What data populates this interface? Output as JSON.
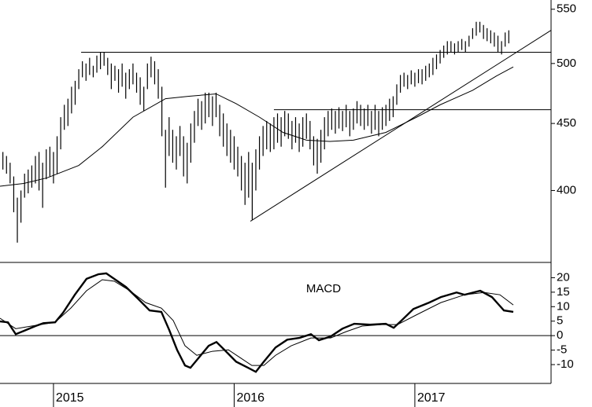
{
  "chart_data": [
    {
      "type": "ohlc",
      "log_scale": true,
      "color": "#000000",
      "xlim": [
        2014.704,
        2017.754
      ],
      "ylim": [
        353,
        559
      ],
      "yticks": [
        550,
        500,
        450,
        400
      ],
      "x": [
        2014.72,
        2014.74,
        2014.76,
        2014.78,
        2014.8,
        2014.82,
        2014.84,
        2014.86,
        2014.88,
        2014.9,
        2014.92,
        2014.94,
        2014.96,
        2014.98,
        2015,
        2015.02,
        2015.04,
        2015.06,
        2015.08,
        2015.1,
        2015.12,
        2015.14,
        2015.16,
        2015.18,
        2015.2,
        2015.22,
        2015.24,
        2015.26,
        2015.28,
        2015.3,
        2015.32,
        2015.34,
        2015.36,
        2015.38,
        2015.4,
        2015.42,
        2015.44,
        2015.46,
        2015.48,
        2015.5,
        2015.52,
        2015.54,
        2015.56,
        2015.58,
        2015.6,
        2015.62,
        2015.64,
        2015.66,
        2015.68,
        2015.7,
        2015.72,
        2015.74,
        2015.76,
        2015.78,
        2015.8,
        2015.82,
        2015.84,
        2015.86,
        2015.88,
        2015.9,
        2015.92,
        2015.94,
        2015.96,
        2015.98,
        2016,
        2016.02,
        2016.04,
        2016.06,
        2016.08,
        2016.1,
        2016.12,
        2016.14,
        2016.16,
        2016.18,
        2016.2,
        2016.22,
        2016.24,
        2016.26,
        2016.28,
        2016.3,
        2016.32,
        2016.34,
        2016.36,
        2016.38,
        2016.4,
        2016.42,
        2016.44,
        2016.46,
        2016.48,
        2016.5,
        2016.52,
        2016.54,
        2016.56,
        2016.58,
        2016.6,
        2016.62,
        2016.64,
        2016.66,
        2016.68,
        2016.7,
        2016.72,
        2016.74,
        2016.76,
        2016.78,
        2016.8,
        2016.82,
        2016.84,
        2016.86,
        2016.88,
        2016.9,
        2016.92,
        2016.94,
        2016.96,
        2016.98,
        2017,
        2017.02,
        2017.04,
        2017.06,
        2017.08,
        2017.1,
        2017.12,
        2017.14,
        2017.16,
        2017.18,
        2017.2,
        2017.22,
        2017.24,
        2017.26,
        2017.28,
        2017.3,
        2017.32,
        2017.34,
        2017.36,
        2017.38,
        2017.4,
        2017.42,
        2017.44,
        2017.46,
        2017.48,
        2017.5,
        2017.52
      ],
      "high": [
        428,
        425,
        420,
        410,
        395,
        400,
        412,
        415,
        418,
        425,
        428,
        420,
        430,
        432,
        428,
        440,
        455,
        465,
        470,
        480,
        485,
        495,
        502,
        500,
        505,
        498,
        507,
        510,
        510,
        505,
        500,
        498,
        495,
        500,
        492,
        495,
        500,
        492,
        488,
        480,
        500,
        506,
        502,
        495,
        480,
        445,
        455,
        445,
        440,
        448,
        440,
        435,
        450,
        460,
        470,
        468,
        475,
        475,
        472,
        475,
        465,
        458,
        450,
        445,
        440,
        432,
        425,
        420,
        428,
        420,
        430,
        440,
        448,
        452,
        450,
        455,
        458,
        455,
        460,
        458,
        452,
        455,
        450,
        455,
        458,
        452,
        440,
        438,
        445,
        455,
        460,
        462,
        460,
        463,
        460,
        465,
        460,
        462,
        468,
        465,
        462,
        465,
        460,
        465,
        460,
        463,
        465,
        470,
        472,
        482,
        490,
        492,
        490,
        494,
        492,
        495,
        495,
        498,
        500,
        505,
        508,
        512,
        516,
        520,
        520,
        518,
        520,
        522,
        520,
        525,
        532,
        538,
        538,
        535,
        532,
        530,
        528,
        525,
        520,
        528,
        530
      ],
      "low": [
        415,
        412,
        405,
        385,
        365,
        378,
        395,
        398,
        402,
        405,
        400,
        388,
        408,
        410,
        405,
        412,
        430,
        445,
        448,
        458,
        465,
        478,
        488,
        485,
        490,
        488,
        492,
        495,
        498,
        490,
        478,
        485,
        475,
        480,
        470,
        478,
        482,
        475,
        465,
        460,
        478,
        488,
        482,
        470,
        440,
        402,
        425,
        420,
        415,
        425,
        410,
        405,
        420,
        435,
        448,
        445,
        450,
        455,
        448,
        455,
        440,
        432,
        425,
        420,
        415,
        410,
        400,
        390,
        395,
        380,
        400,
        415,
        425,
        430,
        428,
        430,
        435,
        432,
        440,
        438,
        430,
        435,
        428,
        432,
        438,
        430,
        418,
        412,
        420,
        430,
        440,
        445,
        442,
        446,
        444,
        447,
        440,
        445,
        450,
        448,
        445,
        448,
        442,
        445,
        440,
        445,
        448,
        452,
        455,
        465,
        475,
        480,
        478,
        482,
        480,
        483,
        482,
        485,
        488,
        490,
        495,
        500,
        505,
        508,
        510,
        508,
        510,
        512,
        510,
        515,
        522,
        525,
        528,
        522,
        520,
        518,
        515,
        510,
        508,
        515,
        518
      ],
      "lines": [
        {
          "x": [
            2014.704,
            2014.835,
            2014.965,
            2015.14,
            2015.27,
            2015.44,
            2015.62,
            2015.75,
            2015.9,
            2016.01,
            2016.14,
            2016.27,
            2016.4,
            2016.53,
            2016.66,
            2016.84,
            2017.01,
            2017.14,
            2017.32,
            2017.45,
            2017.545
          ],
          "values": [
            403,
            405,
            409,
            418,
            432,
            455,
            470,
            472,
            474,
            466,
            455,
            443,
            437,
            436,
            437,
            443,
            455,
            465,
            477,
            489,
            497
          ]
        },
        {
          "x": [
            2016.09,
            2017.754
          ],
          "values": [
            379,
            530
          ]
        },
        {
          "x": [
            2015.153,
            2017.754
          ],
          "values": [
            510,
            510
          ]
        },
        {
          "x": [
            2016.22,
            2017.754
          ],
          "values": [
            461,
            461
          ]
        }
      ]
    },
    {
      "type": "line",
      "title": "MACD",
      "color": "#000000",
      "xlim": [
        2014.704,
        2017.754
      ],
      "ylim": [
        -16.5,
        25
      ],
      "yticks": [
        20,
        15,
        10,
        5,
        0,
        -5,
        -10
      ],
      "hline": 0,
      "xticks": [
        2015,
        2016,
        2017
      ],
      "series": [
        {
          "x": [
            2014.704,
            2014.748,
            2014.791,
            2014.835,
            2014.9,
            2014.944,
            2015.009,
            2015.053,
            2015.118,
            2015.183,
            2015.249,
            2015.292,
            2015.336,
            2015.401,
            2015.467,
            2015.532,
            2015.597,
            2015.641,
            2015.684,
            2015.728,
            2015.758,
            2015.815,
            2015.859,
            2015.902,
            2015.946,
            2016.011,
            2016.077,
            2016.12,
            2016.164,
            2016.229,
            2016.294,
            2016.36,
            2016.425,
            2016.469,
            2016.534,
            2016.599,
            2016.665,
            2016.752,
            2016.839,
            2016.883,
            2016.926,
            2016.992,
            2017.079,
            2017.144,
            2017.231,
            2017.275,
            2017.362,
            2017.427,
            2017.493,
            2017.545
          ],
          "values": [
            4.9,
            4.6,
            0.5,
            1.6,
            3.3,
            4.3,
            4.6,
            7.9,
            14.1,
            19.6,
            21.2,
            21.5,
            19.6,
            16.8,
            12.8,
            8.7,
            8.2,
            1.9,
            -4.9,
            -10.3,
            -11.1,
            -6.8,
            -3.5,
            -2.2,
            -4.9,
            -9,
            -11.1,
            -12.5,
            -9,
            -4.1,
            -1.4,
            -0.8,
            0.5,
            -1.6,
            -0.3,
            2.4,
            4.1,
            3.8,
            4.1,
            2.7,
            5.2,
            9.2,
            11.4,
            13.3,
            14.9,
            14.1,
            15.5,
            13.3,
            8.7,
            8.2
          ],
          "width": 2.4
        },
        {
          "x": [
            2014.704,
            2014.791,
            2014.878,
            2015.009,
            2015.096,
            2015.183,
            2015.27,
            2015.336,
            2015.423,
            2015.51,
            2015.597,
            2015.663,
            2015.728,
            2015.793,
            2015.88,
            2015.968,
            2016.033,
            2016.098,
            2016.164,
            2016.229,
            2016.316,
            2016.425,
            2016.534,
            2016.621,
            2016.708,
            2016.817,
            2016.904,
            2017.013,
            2017.144,
            2017.275,
            2017.384,
            2017.471,
            2017.545
          ],
          "values": [
            6,
            2.4,
            3.3,
            4.6,
            9.5,
            15.5,
            19.3,
            18.8,
            15.5,
            11.4,
            9.5,
            5.2,
            -3.5,
            -6.8,
            -5.4,
            -4.9,
            -7.6,
            -10.3,
            -10.3,
            -6.8,
            -3.5,
            -0.8,
            -0.8,
            1.4,
            3.3,
            3.8,
            3.8,
            7.3,
            11.4,
            14.1,
            14.9,
            14.1,
            10.6
          ],
          "width": 1
        }
      ]
    }
  ]
}
